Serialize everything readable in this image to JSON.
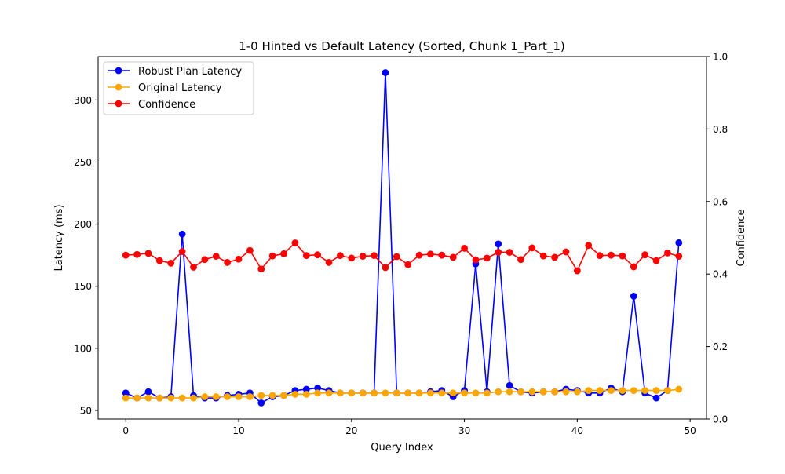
{
  "chart_data": {
    "type": "line",
    "title": "1-0 Hinted vs Default Latency (Sorted, Chunk 1_Part_1)",
    "xlabel": "Query Index",
    "ylabel": "Latency (ms)",
    "y2label": "Confidence",
    "xlim": [
      -2.45,
      51.45
    ],
    "ylim": [
      43,
      335
    ],
    "y2lim": [
      0,
      1
    ],
    "xticks": [
      0,
      10,
      20,
      30,
      40,
      50
    ],
    "yticks": [
      50,
      100,
      150,
      200,
      250,
      300
    ],
    "y2ticks": [
      0.0,
      0.2,
      0.4,
      0.6,
      0.8,
      1.0
    ],
    "y2tick_labels": [
      "0.0",
      "0.2",
      "0.4",
      "0.6",
      "0.8",
      "1.0"
    ],
    "legend_position": "top-left",
    "grid": false,
    "x": [
      0,
      1,
      2,
      3,
      4,
      5,
      6,
      7,
      8,
      9,
      10,
      11,
      12,
      13,
      14,
      15,
      16,
      17,
      18,
      19,
      20,
      21,
      22,
      23,
      24,
      25,
      26,
      27,
      28,
      29,
      30,
      31,
      32,
      33,
      34,
      35,
      36,
      37,
      38,
      39,
      40,
      41,
      42,
      43,
      44,
      45,
      46,
      47,
      48,
      49
    ],
    "series": [
      {
        "name": "Robust Plan Latency",
        "axis": "left",
        "color": "#0000ff",
        "values": [
          64,
          60,
          65,
          60,
          61,
          192,
          62,
          60,
          60,
          62,
          63,
          64,
          56,
          61,
          62,
          66,
          67,
          68,
          66,
          64,
          64,
          64,
          64,
          322,
          64,
          64,
          64,
          65,
          66,
          61,
          66,
          168,
          65,
          184,
          70,
          65,
          64,
          65,
          65,
          67,
          66,
          64,
          64,
          68,
          65,
          142,
          64,
          60,
          66,
          185
        ]
      },
      {
        "name": "Original Latency",
        "axis": "left",
        "color": "#ffa500",
        "values": [
          60,
          60,
          60,
          60,
          60,
          60,
          60,
          61,
          61,
          61,
          61,
          61,
          62,
          62,
          62,
          63,
          63,
          64,
          64,
          64,
          64,
          64,
          64,
          64,
          64,
          64,
          64,
          64,
          64,
          64,
          64,
          64,
          64,
          65,
          65,
          65,
          65,
          65,
          65,
          65,
          65,
          66,
          66,
          66,
          66,
          66,
          66,
          66,
          66,
          67
        ]
      },
      {
        "name": "Confidence",
        "axis": "right",
        "color": "#ff0000",
        "values": [
          0.452,
          0.454,
          0.457,
          0.437,
          0.43,
          0.462,
          0.419,
          0.44,
          0.449,
          0.432,
          0.441,
          0.465,
          0.414,
          0.45,
          0.456,
          0.486,
          0.451,
          0.453,
          0.432,
          0.451,
          0.444,
          0.449,
          0.451,
          0.418,
          0.448,
          0.426,
          0.452,
          0.455,
          0.452,
          0.446,
          0.471,
          0.439,
          0.444,
          0.46,
          0.46,
          0.44,
          0.472,
          0.45,
          0.446,
          0.461,
          0.409,
          0.479,
          0.451,
          0.452,
          0.45,
          0.42,
          0.453,
          0.437,
          0.458,
          0.449
        ]
      }
    ]
  }
}
